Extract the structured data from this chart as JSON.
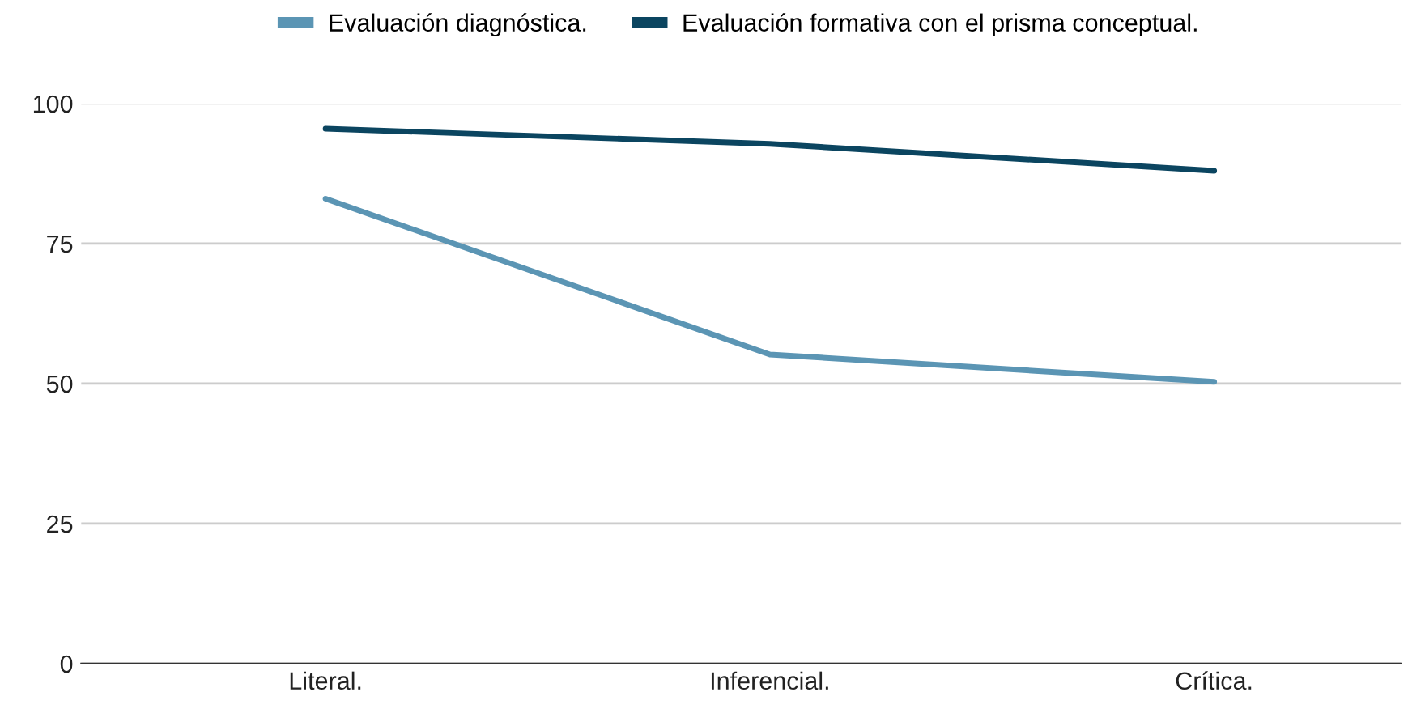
{
  "chart_data": {
    "type": "line",
    "categories": [
      "Literal.",
      "Inferencial.",
      "Crítica."
    ],
    "series": [
      {
        "name": "Evaluación diagnóstica.",
        "color": "#5b95b4",
        "values": [
          83,
          55.2,
          50.3
        ]
      },
      {
        "name": "Evaluación formativa con el prisma conceptual.",
        "color": "#0b4560",
        "values": [
          95.5,
          92.8,
          88
        ]
      }
    ],
    "ylim": [
      0,
      100
    ],
    "yticks": [
      0,
      25,
      50,
      75,
      100
    ],
    "grid": "y",
    "legend": "top",
    "marker": "none",
    "line_style": "solid"
  }
}
